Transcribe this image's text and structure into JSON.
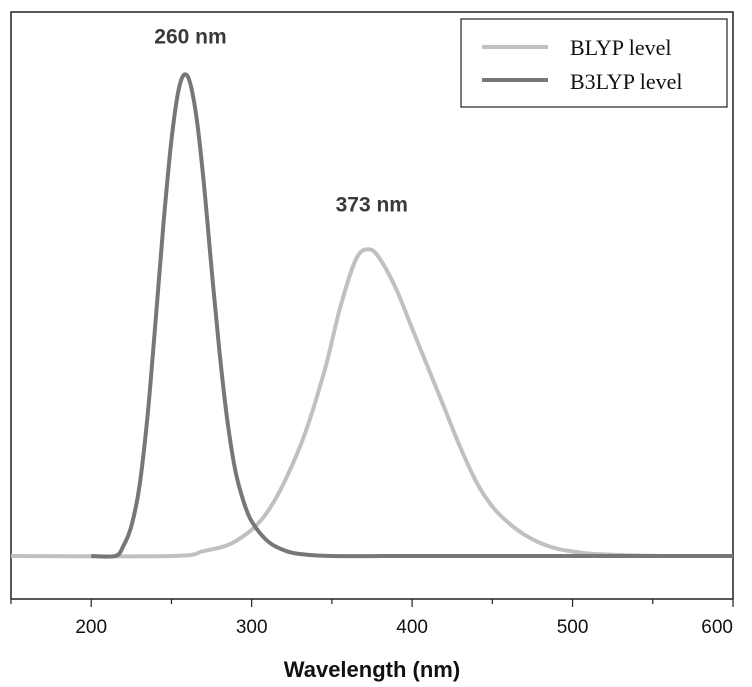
{
  "chart_data": {
    "type": "line",
    "title": "",
    "xlabel": "Wavelength (nm)",
    "ylabel": "",
    "xlim": [
      150,
      600
    ],
    "ylim": [
      0,
      1.05
    ],
    "xticks": [
      200,
      300,
      400,
      500,
      600
    ],
    "xtick_labels": [
      "200",
      "300",
      "400",
      "500",
      "600"
    ],
    "grid": false,
    "legend_position": "top-right",
    "series": [
      {
        "name": "BLYP level",
        "color": "#c0c0c0",
        "x": [
          150,
          250,
          270,
          290,
          310,
          330,
          345,
          355,
          365,
          373,
          380,
          390,
          400,
          410,
          420,
          430,
          440,
          450,
          460,
          470,
          480,
          490,
          500,
          510,
          520,
          540,
          560,
          580,
          600
        ],
        "y": [
          0.0,
          0.0,
          0.01,
          0.03,
          0.09,
          0.22,
          0.37,
          0.5,
          0.6,
          0.62,
          0.6,
          0.54,
          0.46,
          0.38,
          0.3,
          0.22,
          0.15,
          0.1,
          0.067,
          0.043,
          0.026,
          0.015,
          0.009,
          0.005,
          0.003,
          0.001,
          0.0,
          0.0,
          0.0
        ]
      },
      {
        "name": "B3LYP level",
        "color": "#777777",
        "x": [
          200,
          215,
          220,
          225,
          230,
          235,
          240,
          245,
          250,
          255,
          260,
          265,
          270,
          275,
          280,
          285,
          290,
          295,
          300,
          310,
          320,
          330,
          350,
          400,
          500,
          600
        ],
        "y": [
          0.0,
          0.0,
          0.02,
          0.06,
          0.14,
          0.28,
          0.47,
          0.67,
          0.84,
          0.95,
          0.97,
          0.9,
          0.76,
          0.58,
          0.41,
          0.27,
          0.17,
          0.11,
          0.07,
          0.03,
          0.012,
          0.004,
          0.0,
          0.0,
          0.0,
          0.0
        ]
      }
    ],
    "annotations": [
      {
        "text": "260 nm",
        "x": 260,
        "y": 1.05
      },
      {
        "text": "373 nm",
        "x": 373,
        "y": 0.71
      }
    ]
  }
}
